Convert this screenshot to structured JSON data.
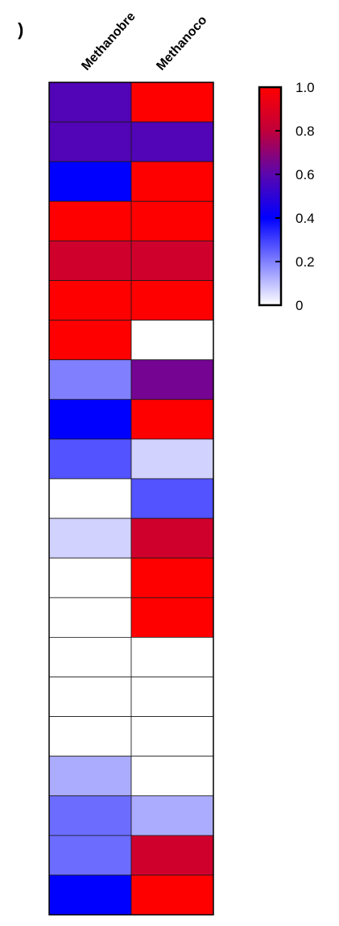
{
  "panel_label": ")",
  "chart_data": {
    "type": "heatmap",
    "columns": [
      "Methanobre",
      "Methanoco"
    ],
    "values": [
      [
        0.58,
        1.0
      ],
      [
        0.58,
        0.58
      ],
      [
        0.4,
        1.0
      ],
      [
        1.0,
        1.0
      ],
      [
        0.85,
        0.85
      ],
      [
        1.0,
        1.0
      ],
      [
        1.0,
        0.0
      ],
      [
        0.2,
        0.65
      ],
      [
        0.4,
        1.0
      ],
      [
        0.27,
        0.07
      ],
      [
        0.0,
        0.27
      ],
      [
        0.07,
        0.85
      ],
      [
        0.0,
        1.0
      ],
      [
        0.0,
        1.0
      ],
      [
        0.0,
        0.0
      ],
      [
        0.0,
        0.0
      ],
      [
        0.0,
        0.0
      ],
      [
        0.13,
        0.0
      ],
      [
        0.23,
        0.13
      ],
      [
        0.23,
        0.85
      ],
      [
        0.4,
        1.0
      ]
    ],
    "colorbar": {
      "ticks": [
        "0",
        "0.2",
        "0.4",
        "0.6",
        "0.8",
        "1.0"
      ],
      "range": [
        0,
        1
      ],
      "stops": [
        {
          "value": 0.0,
          "color": "#ffffff"
        },
        {
          "value": 0.4,
          "color": "#0000ff"
        },
        {
          "value": 0.6,
          "color": "#5a06ae"
        },
        {
          "value": 0.8,
          "color": "#c0003a"
        },
        {
          "value": 1.0,
          "color": "#ff0000"
        }
      ]
    }
  }
}
